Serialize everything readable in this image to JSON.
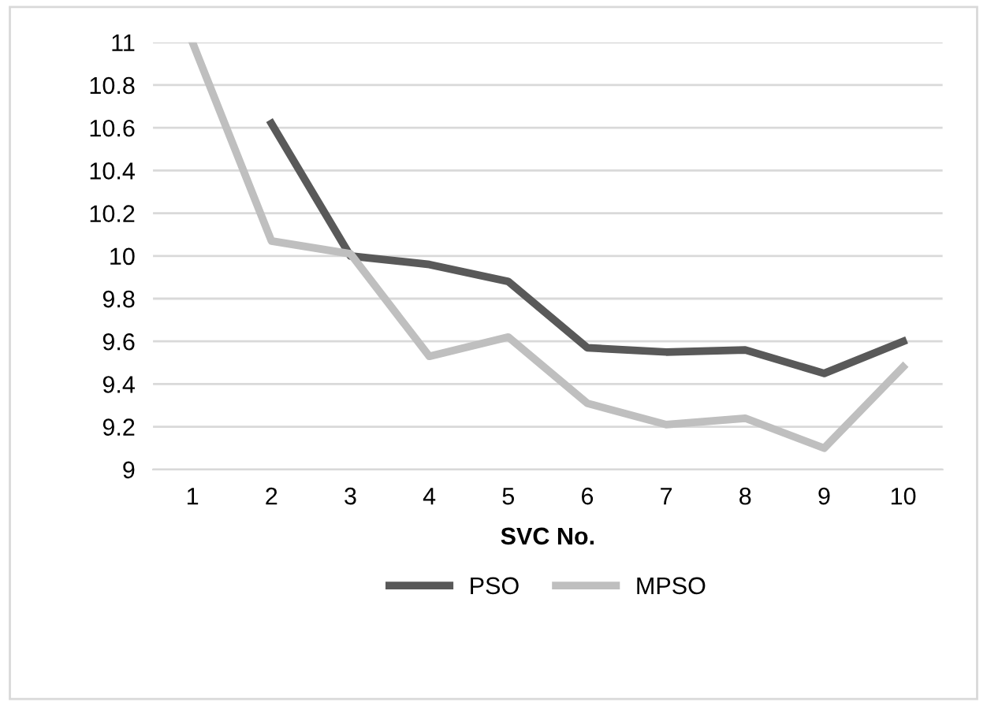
{
  "chart_data": {
    "type": "line",
    "xlabel": "SVC No.",
    "categories": [
      "1",
      "2",
      "3",
      "4",
      "5",
      "6",
      "7",
      "8",
      "9",
      "10"
    ],
    "series": [
      {
        "name": "PSO",
        "color": "#595959",
        "values": [
          null,
          10.62,
          10.0,
          9.96,
          9.88,
          9.57,
          9.55,
          9.56,
          9.45,
          9.6
        ]
      },
      {
        "name": "MPSO",
        "color": "#bfbfbf",
        "values": [
          11,
          10.07,
          10.01,
          9.53,
          9.62,
          9.31,
          9.21,
          9.24,
          9.1,
          9.48
        ]
      }
    ],
    "ylim": [
      9,
      11
    ],
    "yticks": [
      9,
      9.2,
      9.4,
      9.6,
      9.8,
      10,
      10.2,
      10.4,
      10.6,
      10.8,
      11
    ],
    "grid": "y",
    "legend": "bottom",
    "marker": "none",
    "line_style": "solid"
  }
}
